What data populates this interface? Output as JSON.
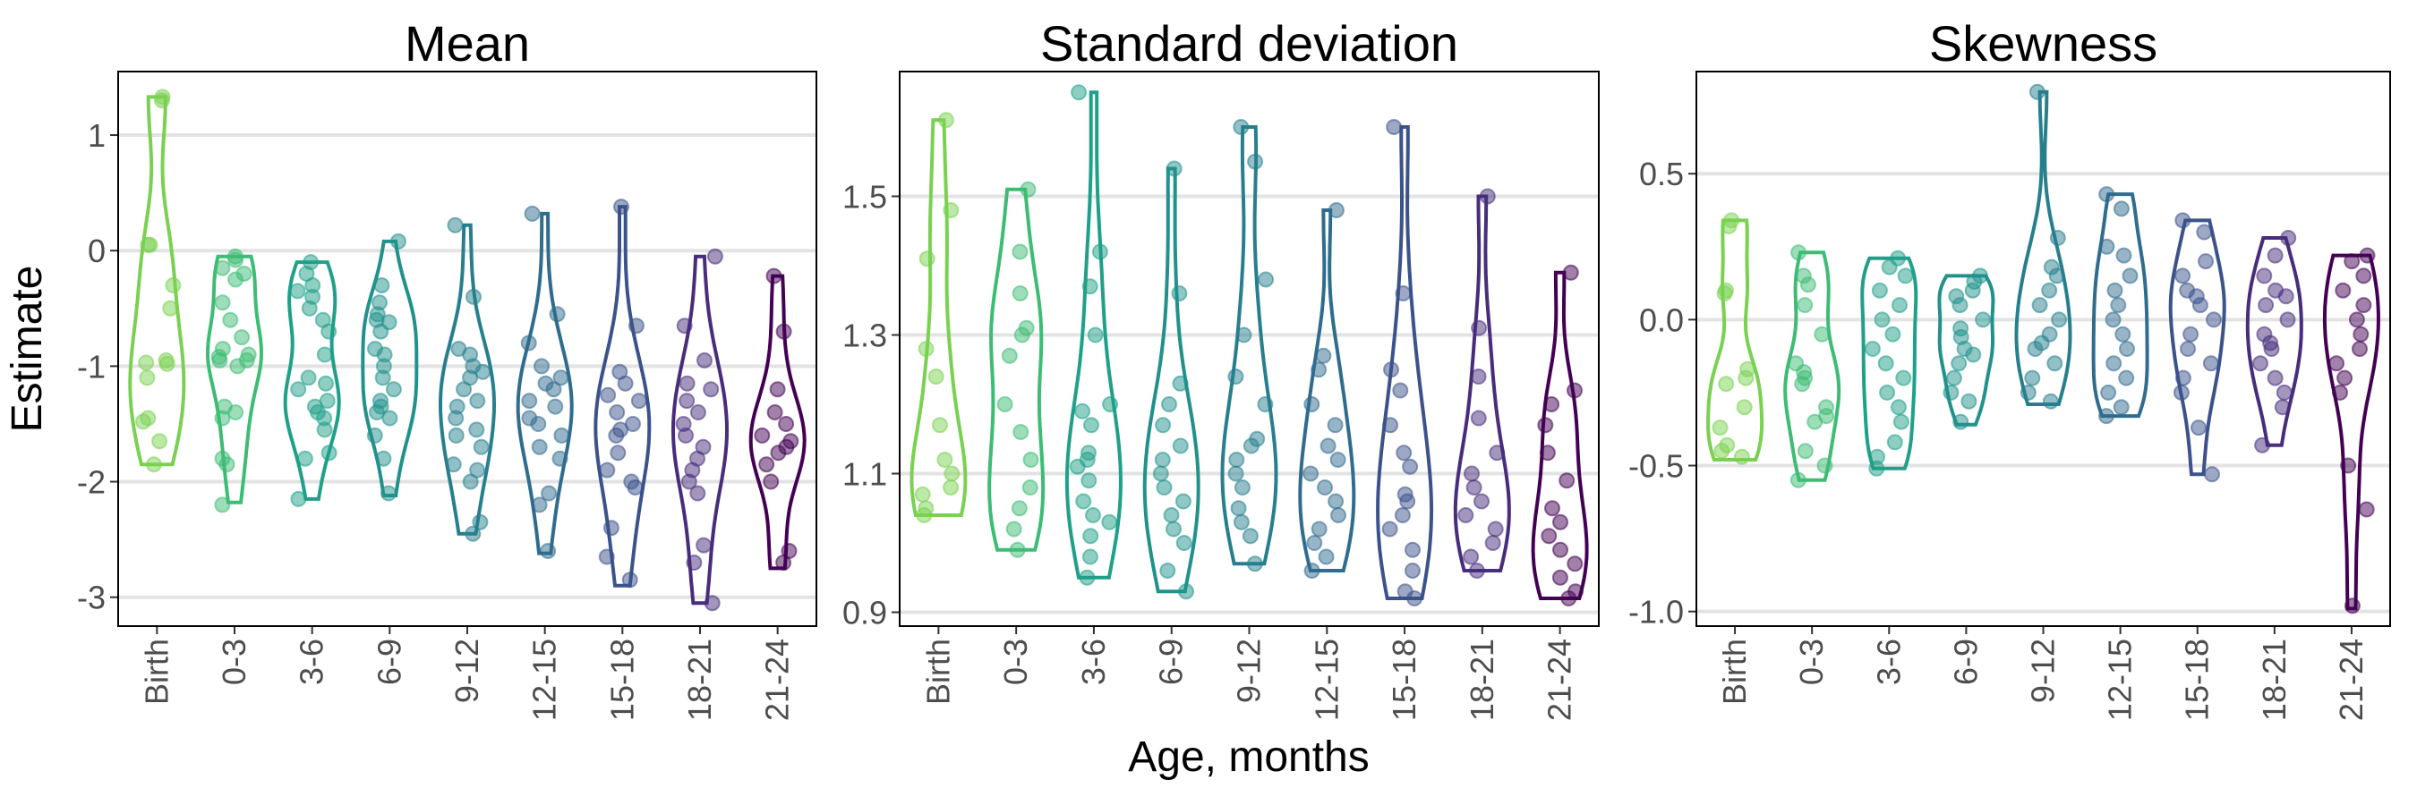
{
  "axes": {
    "xlabel": "Age, months",
    "ylabel": "Estimate"
  },
  "colors": [
    "#7ad151",
    "#3dbc74",
    "#1fa088",
    "#21918c",
    "#277f8e",
    "#2f6c8e",
    "#3b528b",
    "#472d7b",
    "#440154"
  ],
  "chart_data": [
    {
      "type": "violin",
      "title": "Mean",
      "categories": [
        "Birth",
        "0-3",
        "3-6",
        "6-9",
        "9-12",
        "12-15",
        "15-18",
        "18-21",
        "21-24"
      ],
      "ylim": [
        -3.25,
        1.55
      ],
      "yticks": [
        1,
        0,
        -1,
        -2,
        -3
      ],
      "ytick_labels": [
        "1",
        "0",
        "-1",
        "-2",
        "-3"
      ],
      "series": [
        {
          "category": "Birth",
          "range": [
            -1.85,
            1.33
          ],
          "values": [
            1.33,
            1.3,
            0.05,
            0.05,
            -0.3,
            -0.5,
            -0.95,
            -0.97,
            -0.98,
            -1.1,
            -1.45,
            -1.48,
            -1.65,
            -1.85
          ]
        },
        {
          "category": "0-3",
          "range": [
            -2.18,
            -0.05
          ],
          "values": [
            -0.05,
            -0.08,
            -0.15,
            -0.2,
            -0.25,
            -0.45,
            -0.6,
            -0.75,
            -0.85,
            -0.9,
            -0.92,
            -0.95,
            -0.95,
            -1.0,
            -1.35,
            -1.4,
            -1.45,
            -1.8,
            -1.85,
            -2.2
          ]
        },
        {
          "category": "3-6",
          "range": [
            -2.15,
            -0.1
          ],
          "values": [
            -0.1,
            -0.2,
            -0.3,
            -0.35,
            -0.4,
            -0.5,
            -0.6,
            -0.7,
            -0.9,
            -1.1,
            -1.15,
            -1.2,
            -1.3,
            -1.35,
            -1.4,
            -1.45,
            -1.55,
            -1.75,
            -1.8,
            -2.15
          ]
        },
        {
          "category": "6-9",
          "range": [
            -2.12,
            0.08
          ],
          "values": [
            0.08,
            -0.3,
            -0.45,
            -0.55,
            -0.6,
            -0.62,
            -0.7,
            -0.85,
            -0.9,
            -1.0,
            -1.1,
            -1.2,
            -1.3,
            -1.35,
            -1.4,
            -1.45,
            -1.6,
            -1.8,
            -2.1
          ]
        },
        {
          "category": "9-12",
          "range": [
            -2.45,
            0.22
          ],
          "values": [
            0.22,
            -0.4,
            -0.85,
            -0.9,
            -1.0,
            -1.05,
            -1.1,
            -1.2,
            -1.3,
            -1.35,
            -1.45,
            -1.55,
            -1.6,
            -1.7,
            -1.85,
            -1.9,
            -2.0,
            -2.35,
            -2.45
          ]
        },
        {
          "category": "12-15",
          "range": [
            -2.62,
            0.32
          ],
          "values": [
            0.32,
            -0.55,
            -0.8,
            -1.0,
            -1.1,
            -1.15,
            -1.2,
            -1.3,
            -1.35,
            -1.45,
            -1.5,
            -1.6,
            -1.7,
            -1.8,
            -2.1,
            -2.2,
            -2.6
          ]
        },
        {
          "category": "15-18",
          "range": [
            -2.9,
            0.38
          ],
          "values": [
            0.38,
            -0.65,
            -1.05,
            -1.15,
            -1.25,
            -1.3,
            -1.4,
            -1.5,
            -1.55,
            -1.6,
            -1.75,
            -1.9,
            -2.0,
            -2.05,
            -2.4,
            -2.65,
            -2.85
          ]
        },
        {
          "category": "18-21",
          "range": [
            -3.05,
            -0.05
          ],
          "values": [
            -0.05,
            -0.65,
            -0.95,
            -1.15,
            -1.2,
            -1.3,
            -1.4,
            -1.5,
            -1.6,
            -1.7,
            -1.8,
            -1.9,
            -2.0,
            -2.1,
            -2.55,
            -2.7,
            -3.05
          ]
        },
        {
          "category": "21-24",
          "range": [
            -2.75,
            -0.22
          ],
          "values": [
            -0.22,
            -0.7,
            -1.2,
            -1.4,
            -1.5,
            -1.6,
            -1.65,
            -1.7,
            -1.75,
            -1.85,
            -2.0,
            -2.6,
            -2.7
          ]
        }
      ]
    },
    {
      "type": "violin",
      "title": "Standard deviation",
      "categories": [
        "Birth",
        "0-3",
        "3-6",
        "6-9",
        "9-12",
        "12-15",
        "15-18",
        "18-21",
        "21-24"
      ],
      "ylim": [
        0.88,
        1.68
      ],
      "yticks": [
        1.5,
        1.3,
        1.1,
        0.9
      ],
      "ytick_labels": [
        "1.5",
        "1.3",
        "1.1",
        "0.9"
      ],
      "series": [
        {
          "category": "Birth",
          "range": [
            1.04,
            1.61
          ],
          "values": [
            1.61,
            1.48,
            1.41,
            1.28,
            1.24,
            1.17,
            1.12,
            1.1,
            1.08,
            1.07,
            1.05,
            1.04
          ]
        },
        {
          "category": "0-3",
          "range": [
            0.99,
            1.51
          ],
          "values": [
            1.51,
            1.42,
            1.36,
            1.31,
            1.3,
            1.27,
            1.2,
            1.16,
            1.12,
            1.08,
            1.05,
            1.02,
            0.99
          ]
        },
        {
          "category": "3-6",
          "range": [
            0.95,
            1.65
          ],
          "values": [
            1.65,
            1.42,
            1.37,
            1.3,
            1.2,
            1.19,
            1.17,
            1.13,
            1.12,
            1.11,
            1.09,
            1.06,
            1.04,
            1.03,
            1.01,
            0.98,
            0.95
          ]
        },
        {
          "category": "6-9",
          "range": [
            0.93,
            1.54
          ],
          "values": [
            1.54,
            1.36,
            1.23,
            1.2,
            1.17,
            1.14,
            1.12,
            1.1,
            1.08,
            1.06,
            1.04,
            1.02,
            1.0,
            0.96,
            0.93
          ]
        },
        {
          "category": "9-12",
          "range": [
            0.97,
            1.6
          ],
          "values": [
            1.6,
            1.55,
            1.38,
            1.3,
            1.24,
            1.2,
            1.15,
            1.14,
            1.12,
            1.1,
            1.08,
            1.05,
            1.03,
            1.01,
            0.97
          ]
        },
        {
          "category": "12-15",
          "range": [
            0.96,
            1.48
          ],
          "values": [
            1.48,
            1.27,
            1.25,
            1.2,
            1.17,
            1.14,
            1.12,
            1.1,
            1.08,
            1.06,
            1.04,
            1.02,
            1.0,
            0.98,
            0.96
          ]
        },
        {
          "category": "15-18",
          "range": [
            0.92,
            1.6
          ],
          "values": [
            1.6,
            1.36,
            1.25,
            1.22,
            1.17,
            1.13,
            1.11,
            1.07,
            1.06,
            1.04,
            1.02,
            0.99,
            0.96,
            0.93,
            0.92
          ]
        },
        {
          "category": "18-21",
          "range": [
            0.96,
            1.5
          ],
          "values": [
            1.5,
            1.31,
            1.24,
            1.18,
            1.13,
            1.1,
            1.08,
            1.06,
            1.04,
            1.02,
            1.0,
            0.98,
            0.96
          ]
        },
        {
          "category": "21-24",
          "range": [
            0.92,
            1.39
          ],
          "values": [
            1.39,
            1.22,
            1.2,
            1.17,
            1.13,
            1.09,
            1.05,
            1.03,
            1.01,
            0.99,
            0.97,
            0.95,
            0.93,
            0.92
          ]
        }
      ]
    },
    {
      "type": "violin",
      "title": "Skewness",
      "categories": [
        "Birth",
        "0-3",
        "3-6",
        "6-9",
        "9-12",
        "12-15",
        "15-18",
        "18-21",
        "21-24"
      ],
      "ylim": [
        -1.05,
        0.85
      ],
      "yticks": [
        0.5,
        0.0,
        -0.5,
        -1.0
      ],
      "ytick_labels": [
        "0.5",
        "0.0",
        "-0.5",
        "-1.0"
      ],
      "series": [
        {
          "category": "Birth",
          "range": [
            -0.48,
            0.34
          ],
          "values": [
            0.34,
            0.32,
            0.1,
            0.09,
            -0.17,
            -0.2,
            -0.22,
            -0.3,
            -0.37,
            -0.43,
            -0.45,
            -0.47
          ]
        },
        {
          "category": "0-3",
          "range": [
            -0.55,
            0.23
          ],
          "values": [
            0.23,
            0.15,
            0.12,
            0.05,
            -0.05,
            -0.15,
            -0.18,
            -0.2,
            -0.22,
            -0.3,
            -0.33,
            -0.35,
            -0.45,
            -0.5,
            -0.55
          ]
        },
        {
          "category": "3-6",
          "range": [
            -0.51,
            0.21
          ],
          "values": [
            0.21,
            0.18,
            0.15,
            0.1,
            0.05,
            0.0,
            -0.05,
            -0.1,
            -0.15,
            -0.2,
            -0.25,
            -0.3,
            -0.35,
            -0.42,
            -0.47,
            -0.51
          ]
        },
        {
          "category": "6-9",
          "range": [
            -0.36,
            0.15
          ],
          "values": [
            0.15,
            0.13,
            0.1,
            0.08,
            0.05,
            0.0,
            -0.03,
            -0.06,
            -0.1,
            -0.12,
            -0.15,
            -0.2,
            -0.25,
            -0.28,
            -0.35
          ]
        },
        {
          "category": "9-12",
          "range": [
            -0.29,
            0.78
          ],
          "values": [
            0.78,
            0.28,
            0.18,
            0.15,
            0.1,
            0.05,
            0.0,
            -0.05,
            -0.08,
            -0.1,
            -0.15,
            -0.2,
            -0.25,
            -0.28
          ]
        },
        {
          "category": "12-15",
          "range": [
            -0.33,
            0.43
          ],
          "values": [
            0.43,
            0.38,
            0.25,
            0.22,
            0.15,
            0.1,
            0.05,
            0.0,
            -0.05,
            -0.1,
            -0.15,
            -0.2,
            -0.25,
            -0.3,
            -0.33
          ]
        },
        {
          "category": "15-18",
          "range": [
            -0.53,
            0.34
          ],
          "values": [
            0.34,
            0.3,
            0.2,
            0.15,
            0.1,
            0.08,
            0.05,
            0.0,
            -0.05,
            -0.1,
            -0.15,
            -0.2,
            -0.25,
            -0.37,
            -0.53
          ]
        },
        {
          "category": "18-21",
          "range": [
            -0.43,
            0.28
          ],
          "values": [
            0.28,
            0.22,
            0.15,
            0.1,
            0.08,
            0.05,
            0.0,
            -0.05,
            -0.08,
            -0.1,
            -0.15,
            -0.2,
            -0.25,
            -0.3,
            -0.43
          ]
        },
        {
          "category": "21-24",
          "range": [
            -0.99,
            0.22
          ],
          "values": [
            0.22,
            0.2,
            0.15,
            0.1,
            0.05,
            0.0,
            -0.05,
            -0.1,
            -0.15,
            -0.2,
            -0.25,
            -0.5,
            -0.65,
            -0.98
          ]
        }
      ]
    }
  ]
}
